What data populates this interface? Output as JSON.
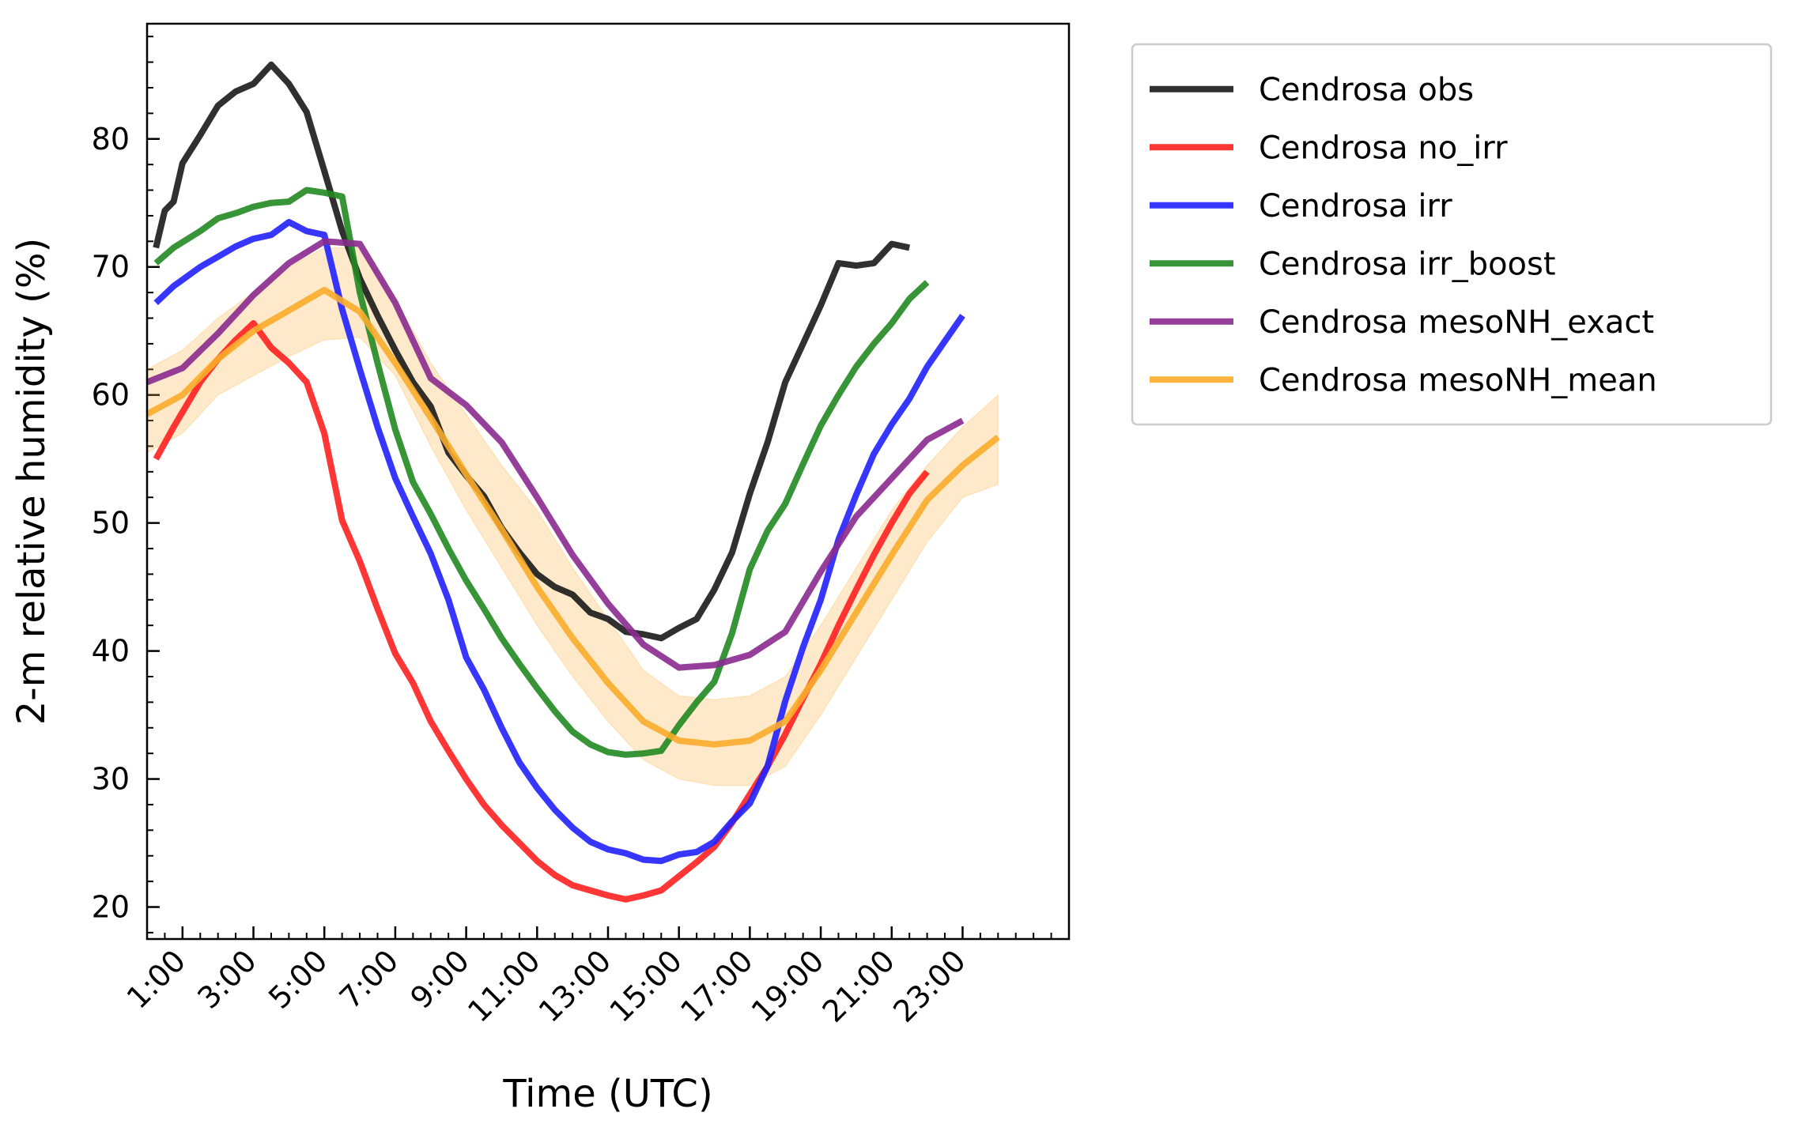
{
  "chart_data": {
    "type": "line",
    "xlabel": "Time (UTC)",
    "ylabel": "2-m relative humidity (%)",
    "xlim": [
      0,
      26
    ],
    "ylim": [
      17.5,
      89
    ],
    "x_ticks": [
      1,
      3,
      5,
      7,
      9,
      11,
      13,
      15,
      17,
      19,
      21,
      23
    ],
    "x_tick_labels": [
      "1:00",
      "3:00",
      "5:00",
      "7:00",
      "9:00",
      "11:00",
      "13:00",
      "15:00",
      "17:00",
      "19:00",
      "21:00",
      "23:00"
    ],
    "y_ticks": [
      20,
      30,
      40,
      50,
      60,
      70,
      80
    ],
    "y_tick_labels": [
      "20",
      "30",
      "40",
      "50",
      "60",
      "70",
      "80"
    ],
    "legend_position": "outside-right",
    "series": [
      {
        "name": "Cendrosa obs",
        "color": "#1a1a1a",
        "points": [
          [
            0.25,
            71.5
          ],
          [
            0.5,
            74.4
          ],
          [
            0.75,
            75.1
          ],
          [
            1,
            78.1
          ],
          [
            1.5,
            80.3
          ],
          [
            2,
            82.6
          ],
          [
            2.5,
            83.7
          ],
          [
            3,
            84.3
          ],
          [
            3.5,
            85.8
          ],
          [
            4,
            84.3
          ],
          [
            4.5,
            82.1
          ],
          [
            5,
            77.5
          ],
          [
            5.5,
            72.8
          ],
          [
            6,
            69.1
          ],
          [
            6.5,
            66.2
          ],
          [
            7,
            63.5
          ],
          [
            7.5,
            61
          ],
          [
            8,
            59.1
          ],
          [
            8.5,
            55.5
          ],
          [
            9,
            53.7
          ],
          [
            9.5,
            52.1
          ],
          [
            10,
            49.6
          ],
          [
            10.5,
            47.7
          ],
          [
            11,
            46
          ],
          [
            11.5,
            45
          ],
          [
            12,
            44.4
          ],
          [
            12.5,
            43
          ],
          [
            13,
            42.5
          ],
          [
            13.5,
            41.5
          ],
          [
            14,
            41.3
          ],
          [
            14.5,
            41
          ],
          [
            15,
            41.8
          ],
          [
            15.5,
            42.5
          ],
          [
            16,
            44.8
          ],
          [
            16.5,
            47.7
          ],
          [
            17,
            52.3
          ],
          [
            17.5,
            56.3
          ],
          [
            18,
            61
          ],
          [
            18.5,
            64
          ],
          [
            19,
            67
          ],
          [
            19.5,
            70.3
          ],
          [
            20,
            70.1
          ],
          [
            20.5,
            70.3
          ],
          [
            21,
            71.8
          ],
          [
            21.5,
            71.5
          ]
        ]
      },
      {
        "name": "Cendrosa no_irr",
        "color": "#ff2020",
        "points": [
          [
            0.25,
            55
          ],
          [
            0.75,
            57.5
          ],
          [
            1.5,
            61
          ],
          [
            2,
            62.8
          ],
          [
            2.5,
            64.3
          ],
          [
            3,
            65.6
          ],
          [
            3.5,
            63.7
          ],
          [
            4,
            62.5
          ],
          [
            4.5,
            61
          ],
          [
            5,
            57
          ],
          [
            5.5,
            50.2
          ],
          [
            6,
            47
          ],
          [
            6.5,
            43.3
          ],
          [
            7,
            39.8
          ],
          [
            7.5,
            37.5
          ],
          [
            8,
            34.5
          ],
          [
            8.5,
            32.2
          ],
          [
            9,
            30
          ],
          [
            9.5,
            28
          ],
          [
            10,
            26.4
          ],
          [
            10.5,
            25
          ],
          [
            11,
            23.6
          ],
          [
            11.5,
            22.5
          ],
          [
            12,
            21.7
          ],
          [
            12.5,
            21.3
          ],
          [
            13,
            20.9
          ],
          [
            13.5,
            20.6
          ],
          [
            14,
            20.9
          ],
          [
            14.5,
            21.3
          ],
          [
            15,
            22.4
          ],
          [
            15.5,
            23.5
          ],
          [
            16,
            24.7
          ],
          [
            16.5,
            26.6
          ],
          [
            17,
            28.8
          ],
          [
            17.5,
            31
          ],
          [
            18,
            33.5
          ],
          [
            18.5,
            36.3
          ],
          [
            19,
            39
          ],
          [
            19.5,
            42
          ],
          [
            20,
            44.8
          ],
          [
            20.5,
            47.5
          ],
          [
            21,
            50
          ],
          [
            21.5,
            52.3
          ],
          [
            22,
            54
          ]
        ]
      },
      {
        "name": "Cendrosa irr",
        "color": "#2020ff",
        "points": [
          [
            0.25,
            67.2
          ],
          [
            0.75,
            68.5
          ],
          [
            1.5,
            70
          ],
          [
            2,
            70.8
          ],
          [
            2.5,
            71.6
          ],
          [
            3,
            72.2
          ],
          [
            3.5,
            72.5
          ],
          [
            4,
            73.5
          ],
          [
            4.5,
            72.8
          ],
          [
            5,
            72.5
          ],
          [
            5.5,
            66.7
          ],
          [
            6,
            62
          ],
          [
            6.5,
            57.5
          ],
          [
            7,
            53.5
          ],
          [
            7.5,
            50.5
          ],
          [
            8,
            47.6
          ],
          [
            8.5,
            44
          ],
          [
            9,
            39.5
          ],
          [
            9.5,
            37
          ],
          [
            10,
            34
          ],
          [
            10.5,
            31.3
          ],
          [
            11,
            29.3
          ],
          [
            11.5,
            27.6
          ],
          [
            12,
            26.2
          ],
          [
            12.5,
            25.1
          ],
          [
            13,
            24.5
          ],
          [
            13.5,
            24.2
          ],
          [
            14,
            23.7
          ],
          [
            14.5,
            23.6
          ],
          [
            15,
            24.1
          ],
          [
            15.5,
            24.3
          ],
          [
            16,
            25.1
          ],
          [
            16.5,
            26.7
          ],
          [
            17,
            28.1
          ],
          [
            17.5,
            31
          ],
          [
            18,
            36.1
          ],
          [
            18.5,
            40.3
          ],
          [
            19,
            44
          ],
          [
            19.5,
            48.7
          ],
          [
            20,
            52.2
          ],
          [
            20.5,
            55.4
          ],
          [
            21,
            57.7
          ],
          [
            21.5,
            59.7
          ],
          [
            22,
            62.2
          ],
          [
            22.5,
            64.2
          ],
          [
            23,
            66.2
          ]
        ]
      },
      {
        "name": "Cendrosa irr_boost",
        "color": "#218a21",
        "points": [
          [
            0.25,
            70.3
          ],
          [
            0.75,
            71.5
          ],
          [
            1.5,
            72.8
          ],
          [
            2,
            73.8
          ],
          [
            2.5,
            74.2
          ],
          [
            3,
            74.7
          ],
          [
            3.5,
            75
          ],
          [
            4,
            75.1
          ],
          [
            4.5,
            76
          ],
          [
            5,
            75.8
          ],
          [
            5.5,
            75.5
          ],
          [
            6,
            68
          ],
          [
            6.5,
            62.5
          ],
          [
            7,
            57.3
          ],
          [
            7.5,
            53.2
          ],
          [
            8,
            50.7
          ],
          [
            8.5,
            48
          ],
          [
            9,
            45.5
          ],
          [
            9.5,
            43.3
          ],
          [
            10,
            41
          ],
          [
            10.5,
            39
          ],
          [
            11,
            37.1
          ],
          [
            11.5,
            35.3
          ],
          [
            12,
            33.7
          ],
          [
            12.5,
            32.7
          ],
          [
            13,
            32.1
          ],
          [
            13.5,
            31.9
          ],
          [
            14,
            32
          ],
          [
            14.5,
            32.2
          ],
          [
            15,
            34.2
          ],
          [
            15.5,
            36
          ],
          [
            16,
            37.6
          ],
          [
            16.5,
            41.4
          ],
          [
            17,
            46.4
          ],
          [
            17.5,
            49.4
          ],
          [
            18,
            51.5
          ],
          [
            18.5,
            54.6
          ],
          [
            19,
            57.6
          ],
          [
            19.5,
            60
          ],
          [
            20,
            62.2
          ],
          [
            20.5,
            64
          ],
          [
            21,
            65.6
          ],
          [
            21.5,
            67.5
          ],
          [
            22,
            68.8
          ]
        ]
      },
      {
        "name": "Cendrosa mesoNH_exact",
        "color": "#8a2a8f",
        "points": [
          [
            0,
            61
          ],
          [
            1,
            62.1
          ],
          [
            2,
            64.8
          ],
          [
            3,
            67.8
          ],
          [
            4,
            70.3
          ],
          [
            5,
            72
          ],
          [
            6,
            71.8
          ],
          [
            7,
            67.2
          ],
          [
            8,
            61.3
          ],
          [
            9,
            59.2
          ],
          [
            10,
            56.3
          ],
          [
            11,
            52
          ],
          [
            12,
            47.5
          ],
          [
            13,
            43.7
          ],
          [
            14,
            40.5
          ],
          [
            15,
            38.7
          ],
          [
            16,
            38.9
          ],
          [
            17,
            39.7
          ],
          [
            18,
            41.5
          ],
          [
            19,
            46.2
          ],
          [
            20,
            50.5
          ],
          [
            21,
            53.5
          ],
          [
            22,
            56.5
          ],
          [
            23,
            58
          ]
        ]
      },
      {
        "name": "Cendrosa mesoNH_mean",
        "color": "#fbac2a",
        "points": [
          [
            0,
            58.5
          ],
          [
            1,
            60
          ],
          [
            2,
            62.8
          ],
          [
            3,
            65
          ],
          [
            4,
            66.6
          ],
          [
            5,
            68.2
          ],
          [
            6,
            66.5
          ],
          [
            7,
            62.5
          ],
          [
            8,
            58.2
          ],
          [
            9,
            53.8
          ],
          [
            10,
            49.5
          ],
          [
            11,
            45
          ],
          [
            12,
            41
          ],
          [
            13,
            37.5
          ],
          [
            14,
            34.5
          ],
          [
            15,
            33
          ],
          [
            16,
            32.7
          ],
          [
            17,
            33
          ],
          [
            18,
            34.5
          ],
          [
            19,
            38.5
          ],
          [
            20,
            43
          ],
          [
            21,
            47.5
          ],
          [
            22,
            51.8
          ],
          [
            23,
            54.5
          ],
          [
            24,
            56.7
          ]
        ]
      }
    ],
    "bands": [
      {
        "name": "Cendrosa mesoNH_mean",
        "color": "#fbac2a",
        "x": [
          0,
          1,
          2,
          3,
          4,
          5,
          6,
          7,
          8,
          9,
          10,
          11,
          12,
          13,
          14,
          15,
          16,
          17,
          18,
          19,
          20,
          21,
          22,
          23,
          24
        ],
        "upper": [
          62,
          63.5,
          66,
          68,
          70,
          71.5,
          71.5,
          67.5,
          62.5,
          58.5,
          54.5,
          51,
          46.5,
          42.5,
          38.5,
          36.5,
          36.2,
          36.5,
          38,
          42,
          46.5,
          51,
          54.5,
          57.5,
          60
        ],
        "lower": [
          55.5,
          57,
          60,
          61.5,
          63,
          64.3,
          64.5,
          61.5,
          56,
          51,
          46.5,
          42,
          38,
          34.5,
          31.5,
          30,
          29.5,
          29.5,
          31,
          35,
          39.5,
          44,
          48.5,
          52,
          53
        ]
      }
    ]
  }
}
